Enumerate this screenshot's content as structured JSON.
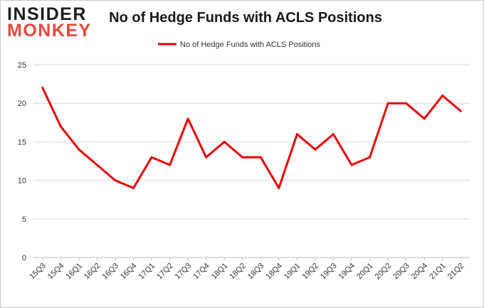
{
  "logo": {
    "line1": "INSIDER",
    "line2": "MONKEY"
  },
  "colors": {
    "series": "#e8000a",
    "grid": "#d9d9d9",
    "logo_red": "#e8473c"
  },
  "chart_data": {
    "type": "line",
    "title": "No of Hedge Funds with ACLS Positions",
    "xlabel": "",
    "ylabel": "",
    "ylim": [
      0,
      25
    ],
    "yticks": [
      0,
      5,
      10,
      15,
      20,
      25
    ],
    "grid": true,
    "legend_position": "top-center",
    "categories": [
      "15Q3",
      "15Q4",
      "16Q1",
      "16Q2",
      "16Q3",
      "16Q4",
      "17Q1",
      "17Q2",
      "17Q3",
      "17Q4",
      "18Q1",
      "18Q2",
      "18Q3",
      "18Q4",
      "19Q1",
      "19Q2",
      "19Q3",
      "19Q4",
      "20Q1",
      "20Q2",
      "20Q3",
      "20Q4",
      "21Q1",
      "21Q2"
    ],
    "series": [
      {
        "name": "No of Hedge Funds with ACLS Positions",
        "values": [
          22,
          17,
          14,
          12,
          10,
          9,
          13,
          12,
          18,
          13,
          15,
          13,
          13,
          9,
          16,
          14,
          16,
          12,
          13,
          20,
          20,
          18,
          21,
          19
        ]
      }
    ]
  }
}
